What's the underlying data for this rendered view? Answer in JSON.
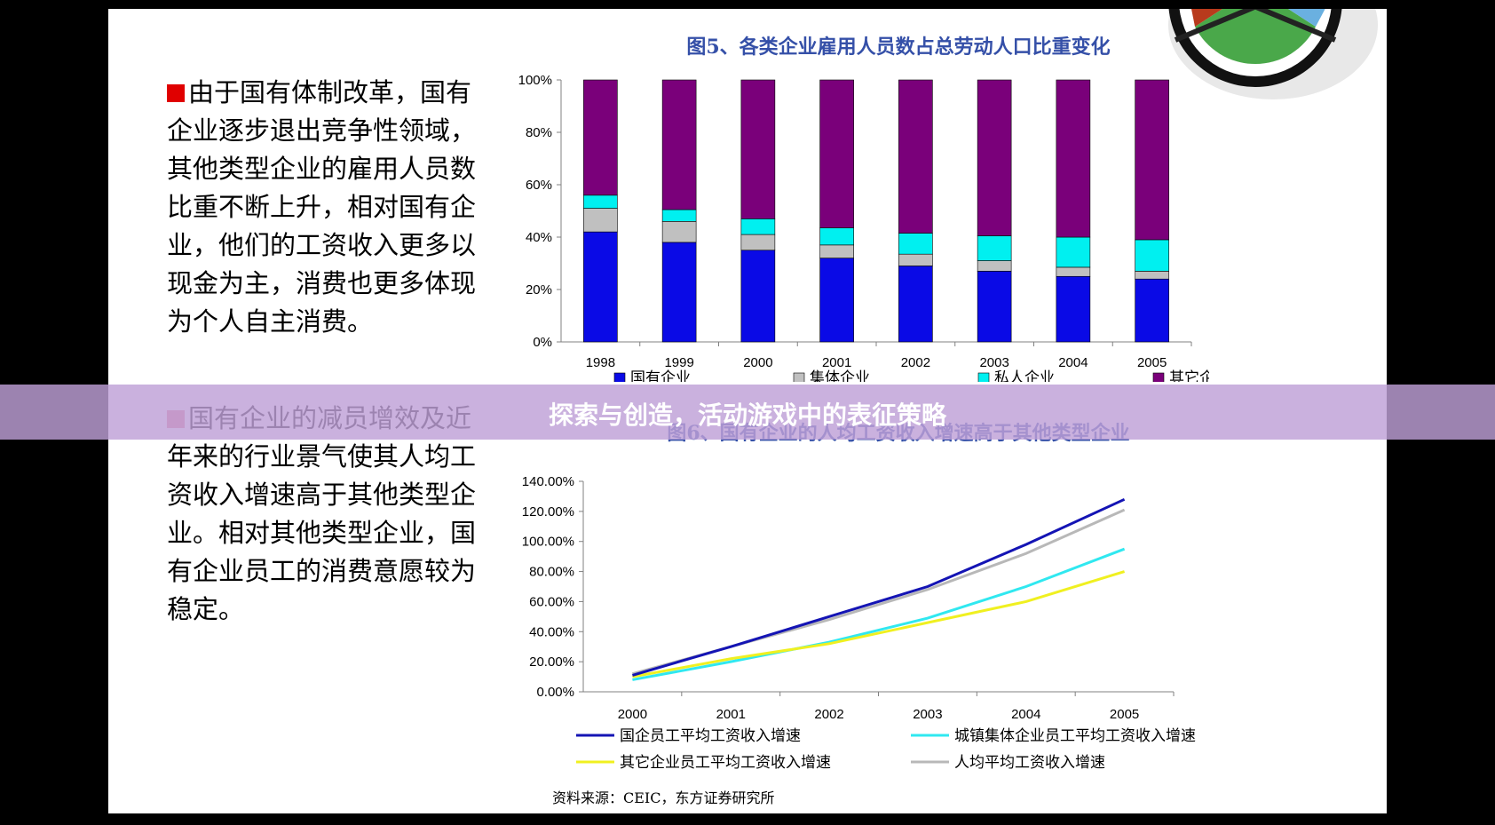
{
  "text": {
    "para1": "由于国有体制改革，国有企业逐步退出竞争性领域，其他类型企业的雇用人员数比重不断上升，相对国有企业，他们的工资收入更多以现金为主，消费也更多体现为个人自主消费。",
    "para2": "国有企业的减员增效及近年来的行业景气使其人均工资收入增速高于其他类型企业。相对其他类型企业，国有企业员工的消费意愿较为稳定。",
    "banner_title": "探索与创造，活动游戏中的表征策略",
    "source": "资料来源：CEIC，东方证券研究所"
  },
  "colors": {
    "bullet1": "#e00000",
    "bullet2": "#e07890",
    "banner": "#c8a8dc"
  },
  "chart_data": [
    {
      "type": "bar",
      "stacked": true,
      "title": "图5、各类企业雇用人员数占总劳动人口比重变化",
      "categories": [
        "1998",
        "1999",
        "2000",
        "2001",
        "2002",
        "2003",
        "2004",
        "2005"
      ],
      "ylim": [
        0,
        100
      ],
      "y_ticks": [
        "0%",
        "20%",
        "40%",
        "60%",
        "80%",
        "100%"
      ],
      "series": [
        {
          "name": "国有企业",
          "color": "#0a0ae6",
          "values": [
            42,
            38,
            35,
            32,
            29,
            27,
            25,
            24
          ]
        },
        {
          "name": "集体企业",
          "color": "#c0c0c0",
          "values": [
            9,
            8,
            6,
            5,
            4.5,
            4,
            3.5,
            3
          ]
        },
        {
          "name": "私人企业",
          "color": "#00f0f0",
          "values": [
            5,
            4.5,
            6,
            6.5,
            8,
            9.5,
            11.5,
            12
          ]
        },
        {
          "name": "其它企业",
          "color": "#7a007a",
          "values": [
            44,
            49.5,
            53,
            56.5,
            58.5,
            59.5,
            60,
            61
          ]
        }
      ],
      "legend": "bottom"
    },
    {
      "type": "line",
      "title": "图6、国有企业的人均工资收入增速高于其他类型企业",
      "x": [
        "2000",
        "2001",
        "2002",
        "2003",
        "2004",
        "2005"
      ],
      "ylim": [
        0,
        140
      ],
      "y_ticks": [
        "0.00%",
        "20.00%",
        "40.00%",
        "60.00%",
        "80.00%",
        "100.00%",
        "120.00%",
        "140.00%"
      ],
      "series": [
        {
          "name": "国企员工平均工资收入增速",
          "color": "#1414b4",
          "values": [
            11,
            30,
            50,
            70,
            98,
            128
          ]
        },
        {
          "name": "城镇集体企业员工平均工资收入增速",
          "color": "#30e8f0",
          "values": [
            8,
            20,
            33,
            49,
            70,
            95
          ]
        },
        {
          "name": "其它企业员工平均工资收入增速",
          "color": "#f0f020",
          "values": [
            10,
            22,
            32,
            46,
            60,
            80
          ]
        },
        {
          "name": "人均平均工资收入增速",
          "color": "#b8b8b8",
          "values": [
            12,
            30,
            48,
            68,
            92,
            121
          ]
        }
      ],
      "legend": "bottom"
    }
  ]
}
